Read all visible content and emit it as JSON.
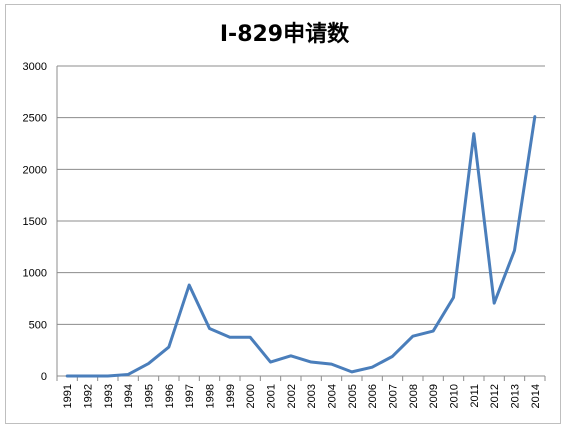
{
  "chart_data": {
    "type": "line",
    "title": "I-829申请数",
    "xlabel": "",
    "ylabel": "",
    "categories": [
      "1991",
      "1992",
      "1993",
      "1994",
      "1995",
      "1996",
      "1997",
      "1998",
      "1999",
      "2000",
      "2001",
      "2002",
      "2003",
      "2004",
      "2005",
      "2006",
      "2007",
      "2008",
      "2009",
      "2010",
      "2011",
      "2012",
      "2013",
      "2014"
    ],
    "series": [
      {
        "values": [
          0,
          0,
          0,
          15,
          120,
          280,
          880,
          460,
          375,
          375,
          135,
          195,
          135,
          115,
          40,
          85,
          190,
          385,
          435,
          760,
          2345,
          705,
          1215,
          2510
        ]
      }
    ],
    "ylim": [
      0,
      3000
    ],
    "yticks": [
      0,
      500,
      1000,
      1500,
      2000,
      2500,
      3000
    ],
    "grid": true,
    "line_color": "#4a7ebb"
  }
}
